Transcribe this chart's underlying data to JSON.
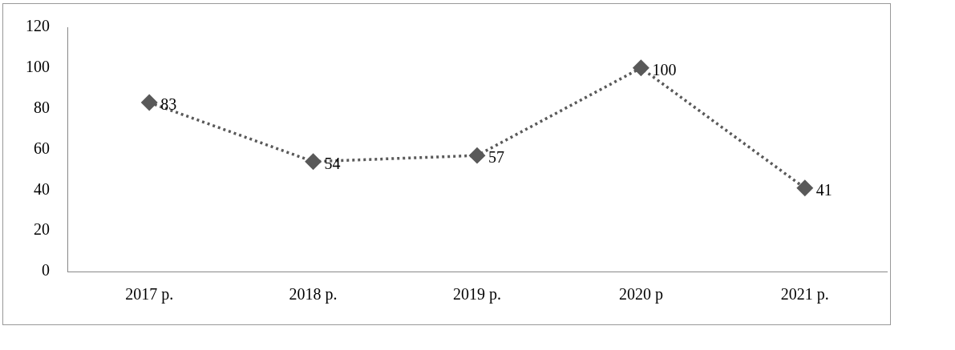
{
  "chart_data": {
    "type": "line",
    "categories": [
      "2017 р.",
      "2018 р.",
      "2019 р.",
      "2020 р",
      "2021 р."
    ],
    "series": [
      {
        "color": "#595959",
        "values": [
          83,
          54,
          57,
          100,
          41
        ]
      }
    ],
    "ylim": [
      0,
      120
    ],
    "yticks": [
      0,
      20,
      40,
      60,
      80,
      100,
      120
    ],
    "grid": false,
    "legend": false,
    "marker": "diamond",
    "line_style": "dotted",
    "data_labels": true
  }
}
